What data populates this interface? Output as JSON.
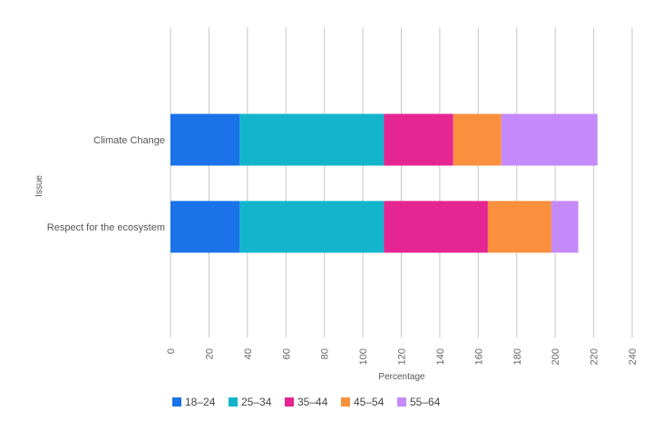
{
  "chart_data": {
    "type": "bar",
    "orientation": "horizontal",
    "stacked": true,
    "categories": [
      "Climate Change",
      "Respect for the ecosystem"
    ],
    "series": [
      {
        "name": "18–24",
        "color": "#1a73e8",
        "values": [
          36,
          36
        ]
      },
      {
        "name": "25–34",
        "color": "#12b5cb",
        "values": [
          75,
          75
        ]
      },
      {
        "name": "35–44",
        "color": "#e52592",
        "values": [
          36,
          54
        ]
      },
      {
        "name": "45–54",
        "color": "#fa903e",
        "values": [
          25,
          33
        ]
      },
      {
        "name": "55–64",
        "color": "#c58af9",
        "values": [
          50,
          14
        ]
      }
    ],
    "xlabel": "Percentage",
    "ylabel": "Issue",
    "xlim": [
      0,
      240
    ],
    "xticks": [
      "0",
      "20",
      "40",
      "60",
      "80",
      "100",
      "120",
      "140",
      "160",
      "180",
      "200",
      "220",
      "240"
    ],
    "grid": true,
    "legend_position": "bottom"
  }
}
